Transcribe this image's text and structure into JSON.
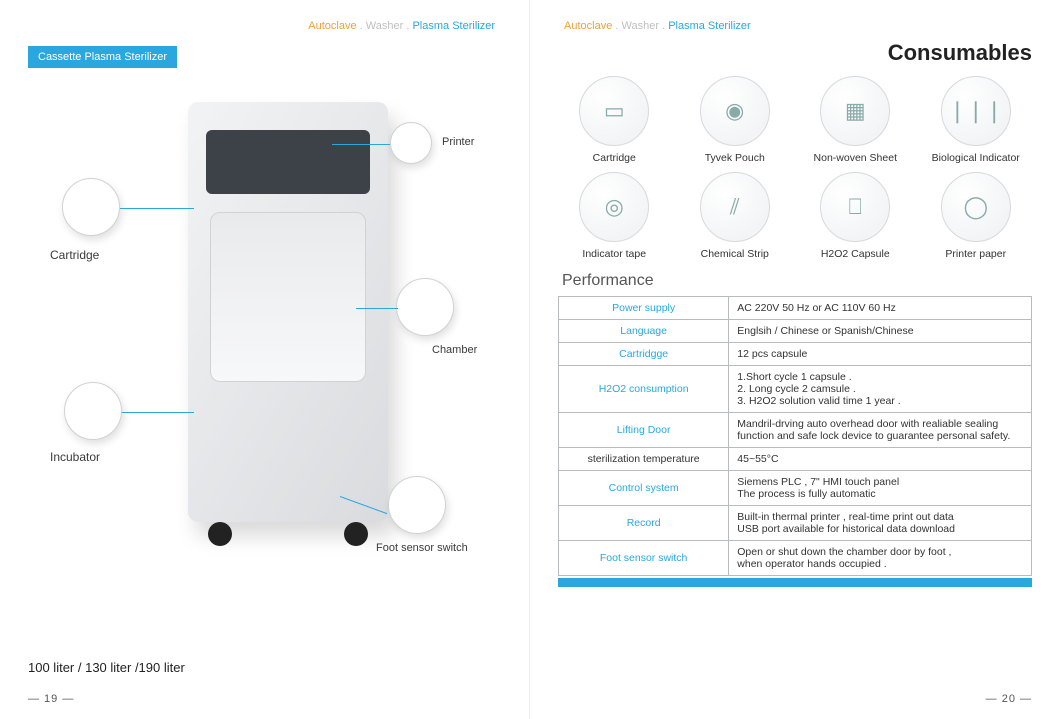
{
  "header": {
    "a": "Autoclave",
    "dot": ".",
    "b": "Washer",
    "c": "Plasma Sterilizer"
  },
  "left": {
    "badge": "Cassette Plasma Sterilizer",
    "callouts": {
      "cartridge": "Cartridge",
      "incubator": "Incubator",
      "printer": "Printer",
      "chamber": "Chamber",
      "foot": "Foot sensor switch"
    },
    "sizes": "100 liter / 130 liter /190 liter",
    "pageNum": "— 19 —"
  },
  "right": {
    "title": "Consumables",
    "consumables": [
      {
        "label": "Cartridge",
        "glyph": "▭"
      },
      {
        "label": "Tyvek Pouch",
        "glyph": "◉"
      },
      {
        "label": "Non-woven Sheet",
        "glyph": "▦"
      },
      {
        "label": "Biological Indicator",
        "glyph": "❘❘❘"
      },
      {
        "label": "Indicator tape",
        "glyph": "◎"
      },
      {
        "label": "Chemical Strip",
        "glyph": "⫽"
      },
      {
        "label": "H2O2  Capsule",
        "glyph": "⎕"
      },
      {
        "label": "Printer paper",
        "glyph": "◯"
      }
    ],
    "perfTitle": "Performance",
    "table": [
      {
        "k": "Power supply",
        "v": "AC 220V   50 Hz   or  AC 110V   60 Hz",
        "kcolor": "blue"
      },
      {
        "k": "Language",
        "v": "Englsih / Chinese  or  Spanish/Chinese",
        "kcolor": "blue"
      },
      {
        "k": "Cartridgge",
        "v": "12 pcs capsule",
        "kcolor": "blue"
      },
      {
        "k": "H2O2 consumption",
        "v": "1.Short   cycle   1 capsule .\n2. Long    cycle   2 camsule .\n3. H2O2  solution valid time   1 year .",
        "kcolor": "blue"
      },
      {
        "k": "Lifting Door",
        "v": "Mandril-drving auto overhead door with realiable sealing function and safe lock device to guarantee personal safety.",
        "kcolor": "blue"
      },
      {
        "k": "sterilization   temperature",
        "v": "45~55°C",
        "kcolor": "black"
      },
      {
        "k": "Control system",
        "v": "Siemens PLC  ,  7\"  HMI touch panel\nThe process is fully automatic",
        "kcolor": "blue"
      },
      {
        "k": "Record",
        "v": "Built-in thermal printer , real-time print out  data\nUSB  port available for historical data download",
        "kcolor": "blue"
      },
      {
        "k": "Foot sensor switch",
        "v": "Open or shut down the chamber door  by foot ,\nwhen operator hands occupied .",
        "kcolor": "blue"
      }
    ],
    "pageNum": "— 20 —"
  },
  "colors": {
    "accent": "#2aa7df",
    "orange": "#e8a23d",
    "grey": "#bfbfbf",
    "border": "#b9bcbf"
  }
}
